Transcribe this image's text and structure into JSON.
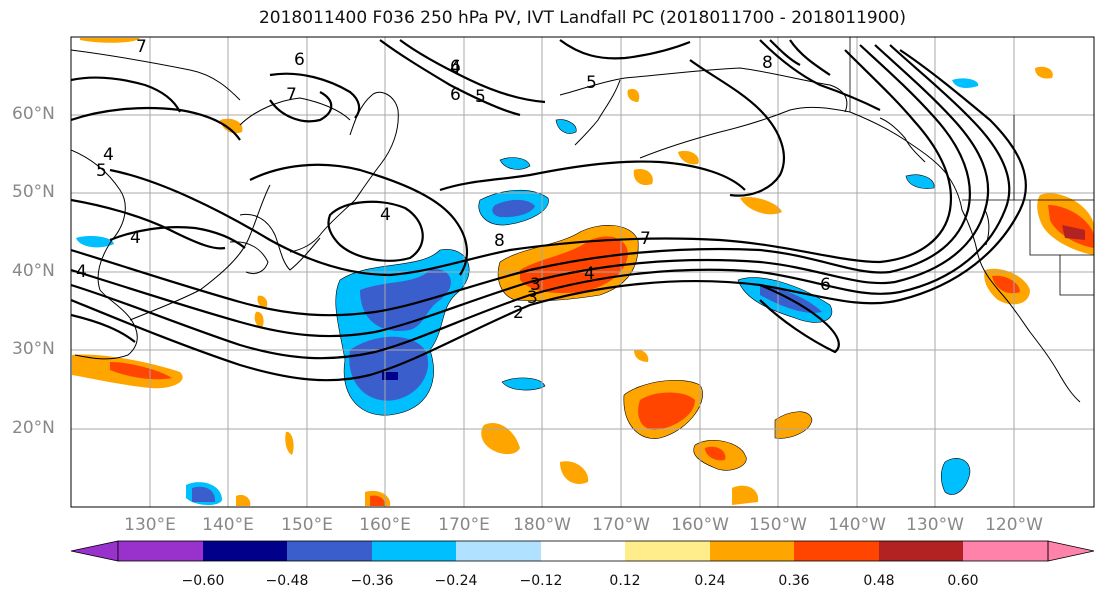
{
  "title": "2018011400 F036 250 hPa PV, IVT Landfall PC (2018011700 - 2018011900)",
  "lat_labels": [
    "60°N",
    "50°N",
    "40°N",
    "30°N",
    "20°N"
  ],
  "lon_labels": [
    "130°E",
    "140°E",
    "150°E",
    "160°E",
    "170°E",
    "180°W",
    "170°W",
    "160°W",
    "150°W",
    "140°W",
    "130°W",
    "120°W"
  ],
  "contour_labels": [
    "7",
    "6",
    "7",
    "5",
    "4",
    "6",
    "5",
    "4",
    "5",
    "8",
    "4",
    "4",
    "6",
    "4",
    "8",
    "3",
    "2",
    "3",
    "7",
    "4",
    "6"
  ],
  "colorbar": {
    "colors": [
      "#9932cc",
      "#00008b",
      "#3a5fcd",
      "#00bfff",
      "#b0e2ff",
      "#ffffff",
      "#ffec8b",
      "#ffa500",
      "#ff4500",
      "#b22222",
      "#ff82ab"
    ],
    "ticks": [
      "−0.60",
      "−0.48",
      "−0.36",
      "−0.24",
      "−0.12",
      "0.12",
      "0.24",
      "0.36",
      "0.48",
      "0.60"
    ]
  }
}
